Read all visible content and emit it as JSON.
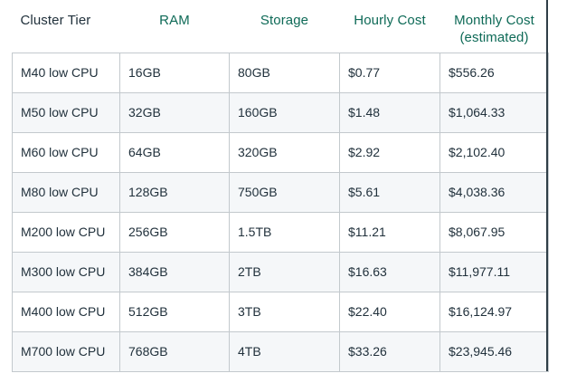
{
  "table": {
    "header": {
      "cluster_tier": "Cluster Tier",
      "ram": "RAM",
      "storage": "Storage",
      "hourly_cost": "Hourly Cost",
      "monthly_cost_line1": "Monthly Cost",
      "monthly_cost_line2": "(estimated)"
    },
    "rows": [
      {
        "tier": "M40 low CPU",
        "ram": "16GB",
        "storage": "80GB",
        "hourly": "$0.77",
        "monthly": "$556.26"
      },
      {
        "tier": "M50 low CPU",
        "ram": "32GB",
        "storage": "160GB",
        "hourly": "$1.48",
        "monthly": "$1,064.33"
      },
      {
        "tier": "M60 low CPU",
        "ram": "64GB",
        "storage": "320GB",
        "hourly": "$2.92",
        "monthly": "$2,102.40"
      },
      {
        "tier": "M80 low CPU",
        "ram": "128GB",
        "storage": "750GB",
        "hourly": "$5.61",
        "monthly": "$4,038.36"
      },
      {
        "tier": "M200 low CPU",
        "ram": "256GB",
        "storage": "1.5TB",
        "hourly": "$11.21",
        "monthly": "$8,067.95"
      },
      {
        "tier": "M300 low CPU",
        "ram": "384GB",
        "storage": "2TB",
        "hourly": "$16.63",
        "monthly": "$11,977.11"
      },
      {
        "tier": "M400 low CPU",
        "ram": "512GB",
        "storage": "3TB",
        "hourly": "$22.40",
        "monthly": "$16,124.97"
      },
      {
        "tier": "M700 low CPU",
        "ram": "768GB",
        "storage": "4TB",
        "hourly": "$33.26",
        "monthly": "$23,945.46"
      }
    ]
  },
  "colors": {
    "header_green": "#0E6A57",
    "header_dark": "#21313C",
    "body_text": "#21313C",
    "row_alt_bg": "#F5F7F9",
    "cell_border": "#C3C9CD",
    "right_edge_border": "#2F3E47"
  }
}
